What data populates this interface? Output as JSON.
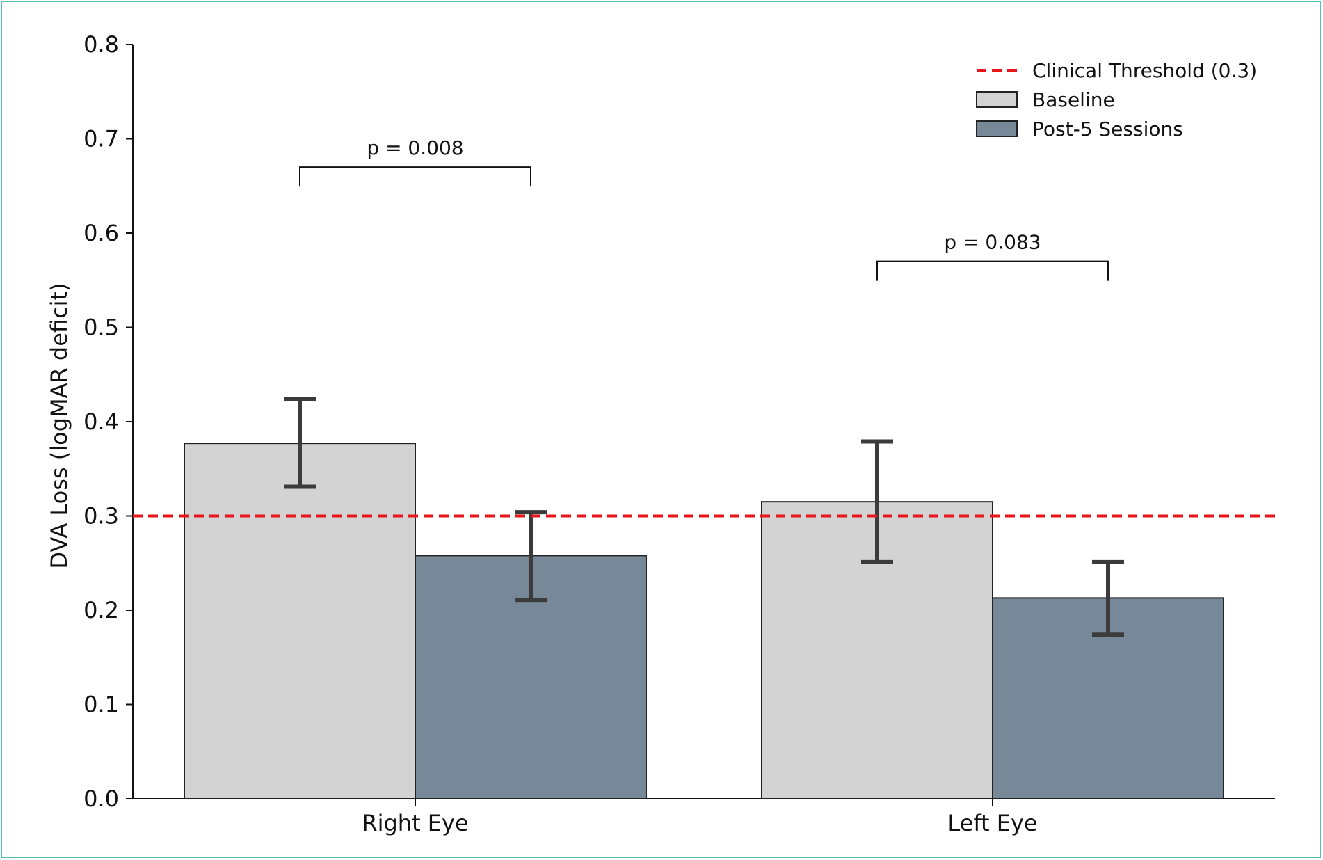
{
  "chart_data": {
    "type": "bar",
    "title": "",
    "xlabel": "",
    "ylabel": "DVA Loss (logMAR deficit)",
    "ylim": [
      0,
      0.8
    ],
    "yticks": [
      "0.0",
      "0.1",
      "0.2",
      "0.3",
      "0.4",
      "0.5",
      "0.6",
      "0.7",
      "0.8"
    ],
    "categories": [
      "Right Eye",
      "Left Eye"
    ],
    "series": [
      {
        "name": "Baseline",
        "values": [
          0.377,
          0.315
        ],
        "error_low": [
          0.331,
          0.251
        ],
        "error_high": [
          0.424,
          0.379
        ],
        "color": "#d3d3d3"
      },
      {
        "name": "Post-5 Sessions",
        "values": [
          0.258,
          0.213
        ],
        "error_low": [
          0.211,
          0.174
        ],
        "error_high": [
          0.304,
          0.251
        ],
        "color": "#778899"
      }
    ],
    "threshold": {
      "name": "Clinical Threshold (0.3)",
      "value": 0.3,
      "color": "#e8161a"
    },
    "annotations": [
      {
        "category": "Right Eye",
        "text": "p = 0.008",
        "y": 0.67
      },
      {
        "category": "Left Eye",
        "text": "p = 0.083",
        "y": 0.57
      }
    ],
    "grid": false,
    "legend_position": "top-right"
  }
}
